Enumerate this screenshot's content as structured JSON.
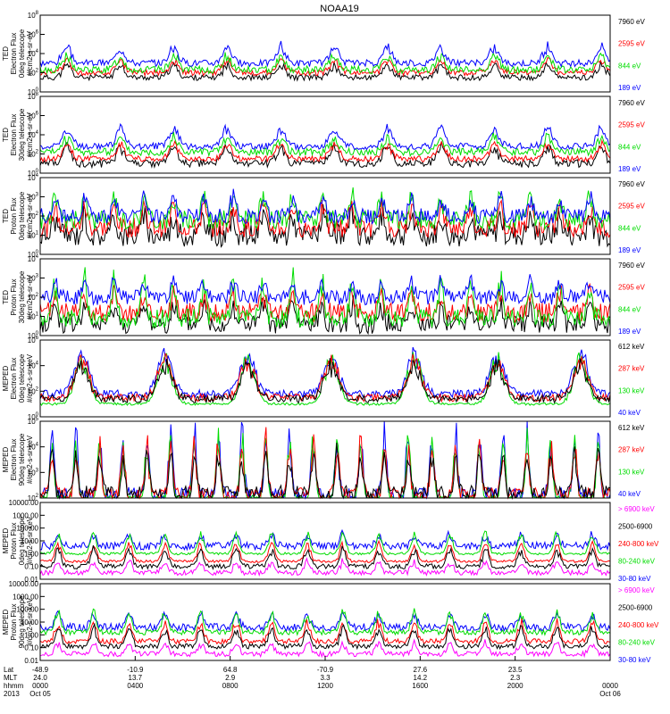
{
  "title": "NOAA19",
  "chart_data": [
    {
      "type": "line",
      "ylabel": [
        "TED",
        "Electron Flux",
        "0deg telescope",
        "#/cm2-s-sr-eV"
      ],
      "yticks": [
        "10^0",
        "10^2",
        "10^4",
        "10^6",
        "10^8"
      ],
      "ylim": [
        1,
        100000000
      ],
      "yscale": "log",
      "legend": [
        {
          "label": "7960 eV",
          "color": "#000000"
        },
        {
          "label": "2595 eV",
          "color": "#ff0000"
        },
        {
          "label": "844 eV",
          "color": "#00dd00"
        },
        {
          "label": "189 eV",
          "color": "#0000ff"
        }
      ],
      "series": [
        {
          "name": "7960 eV",
          "color": "#000000",
          "base": 1.5,
          "peak": 3,
          "peak_every": 9,
          "noise": 0.3,
          "seed": 11
        },
        {
          "name": "2595 eV",
          "color": "#ff0000",
          "base": 2.0,
          "peak": 3.5,
          "peak_every": 9,
          "noise": 0.3,
          "seed": 12
        },
        {
          "name": "844 eV",
          "color": "#00dd00",
          "base": 2.3,
          "peak": 4,
          "peak_every": 9,
          "noise": 0.4,
          "seed": 13
        },
        {
          "name": "189 eV",
          "color": "#0000ff",
          "base": 3.0,
          "peak": 5,
          "peak_every": 9,
          "noise": 0.35,
          "seed": 14
        }
      ]
    },
    {
      "type": "line",
      "ylabel": [
        "TED",
        "Electron Flux",
        "30deg telescope",
        "#/cm2-s-sr-eV"
      ],
      "yticks": [
        "10^0",
        "10^2",
        "10^4",
        "10^6",
        "10^8"
      ],
      "ylim": [
        1,
        100000000
      ],
      "yscale": "log",
      "legend": [
        {
          "label": "7960 eV",
          "color": "#000000"
        },
        {
          "label": "2595 eV",
          "color": "#ff0000"
        },
        {
          "label": "844 eV",
          "color": "#00dd00"
        },
        {
          "label": "189 eV",
          "color": "#0000ff"
        }
      ],
      "series": [
        {
          "name": "7960 eV",
          "color": "#000000",
          "base": 1.0,
          "peak": 3,
          "peak_every": 9,
          "noise": 0.4,
          "seed": 21
        },
        {
          "name": "2595 eV",
          "color": "#ff0000",
          "base": 1.5,
          "peak": 3.3,
          "peak_every": 9,
          "noise": 0.3,
          "seed": 22
        },
        {
          "name": "844 eV",
          "color": "#00dd00",
          "base": 2.2,
          "peak": 4,
          "peak_every": 9,
          "noise": 0.4,
          "seed": 23
        },
        {
          "name": "189 eV",
          "color": "#0000ff",
          "base": 2.8,
          "peak": 5,
          "peak_every": 9,
          "noise": 0.35,
          "seed": 24
        }
      ]
    },
    {
      "type": "line",
      "ylabel": [
        "TED",
        "Proton Flux",
        "0deg telescope",
        "#/cm2-s-sr-eV"
      ],
      "yticks": [
        "10^0",
        "10^1",
        "10^2",
        "10^3",
        "10^4"
      ],
      "ylim": [
        1,
        10000
      ],
      "yscale": "log",
      "legend": [
        {
          "label": "7960 eV",
          "color": "#000000"
        },
        {
          "label": "2595 eV",
          "color": "#ff0000"
        },
        {
          "label": "844 eV",
          "color": "#00dd00"
        },
        {
          "label": "189 eV",
          "color": "#0000ff"
        }
      ],
      "series": [
        {
          "name": "7960 eV",
          "color": "#000000",
          "base": 1.0,
          "peak": 2.2,
          "peak_every": 5,
          "noise": 0.6,
          "seed": 31
        },
        {
          "name": "2595 eV",
          "color": "#ff0000",
          "base": 1.4,
          "peak": 2.8,
          "peak_every": 5,
          "noise": 0.5,
          "seed": 32
        },
        {
          "name": "844 eV",
          "color": "#00dd00",
          "base": 1.8,
          "peak": 3.4,
          "peak_every": 5,
          "noise": 0.5,
          "seed": 33
        },
        {
          "name": "189 eV",
          "color": "#0000ff",
          "base": 2.0,
          "peak": 3.2,
          "peak_every": 5,
          "noise": 0.4,
          "seed": 34
        }
      ]
    },
    {
      "type": "line",
      "ylabel": [
        "TED",
        "Proton Flux",
        "30deg telescope",
        "#/cm2-s-sr-eV"
      ],
      "yticks": [
        "10^0",
        "10^1",
        "10^2",
        "10^3",
        "10^4"
      ],
      "ylim": [
        1,
        10000
      ],
      "yscale": "log",
      "legend": [
        {
          "label": "7960 eV",
          "color": "#000000"
        },
        {
          "label": "2595 eV",
          "color": "#ff0000"
        },
        {
          "label": "844 eV",
          "color": "#00dd00"
        },
        {
          "label": "189 eV",
          "color": "#0000ff"
        }
      ],
      "series": [
        {
          "name": "7960 eV",
          "color": "#000000",
          "base": 0.6,
          "peak": 1.8,
          "peak_every": 5,
          "noise": 0.5,
          "seed": 41
        },
        {
          "name": "2595 eV",
          "color": "#ff0000",
          "base": 1.2,
          "peak": 2.4,
          "peak_every": 5,
          "noise": 0.5,
          "seed": 42
        },
        {
          "name": "844 eV",
          "color": "#00dd00",
          "base": 0.9,
          "peak": 3.2,
          "peak_every": 5,
          "noise": 0.5,
          "seed": 43
        },
        {
          "name": "189 eV",
          "color": "#0000ff",
          "base": 2.0,
          "peak": 3.0,
          "peak_every": 5,
          "noise": 0.4,
          "seed": 44
        }
      ]
    },
    {
      "type": "line",
      "ylabel": [
        "MEPED",
        "Electron Flux",
        "0deg telescope",
        "#/cm2-s-sr-keV"
      ],
      "yticks": [
        "10^0",
        "10^2",
        "10^4",
        "10^6"
      ],
      "ylim": [
        1,
        1000000
      ],
      "yscale": "log",
      "legend": [
        {
          "label": "612 keV",
          "color": "#000000"
        },
        {
          "label": "287 keV",
          "color": "#ff0000"
        },
        {
          "label": "130 keV",
          "color": "#00dd00"
        },
        {
          "label": "40 keV",
          "color": "#0000ff"
        }
      ],
      "series": [
        {
          "name": "40 keV",
          "color": "#0000ff",
          "base": 1.8,
          "peak": 5.5,
          "peak_every": 14,
          "noise": 0.3,
          "seed": 51
        },
        {
          "name": "130 keV",
          "color": "#00dd00",
          "base": 1.0,
          "peak": 5.2,
          "peak_every": 14,
          "noise": 0.1,
          "seed": 52
        },
        {
          "name": "287 keV",
          "color": "#ff0000",
          "base": 1.5,
          "peak": 5.0,
          "peak_every": 14,
          "noise": 0.3,
          "seed": 53
        },
        {
          "name": "612 keV",
          "color": "#000000",
          "base": 1.4,
          "peak": 4.5,
          "peak_every": 14,
          "noise": 0.3,
          "seed": 54
        }
      ]
    },
    {
      "type": "line",
      "ylabel": [
        "MEPED",
        "Electron Flux",
        "90deg telescope",
        "#/cm2-s-sr-keV"
      ],
      "yticks": [
        "10^2",
        "10^3",
        "10^4",
        "10^5"
      ],
      "ylim": [
        100,
        100000
      ],
      "yscale": "log",
      "legend": [
        {
          "label": "612 keV",
          "color": "#000000"
        },
        {
          "label": "287 keV",
          "color": "#ff0000"
        },
        {
          "label": "130 keV",
          "color": "#00dd00"
        },
        {
          "label": "40 keV",
          "color": "#0000ff"
        }
      ],
      "series": [
        {
          "name": "40 keV",
          "color": "#0000ff",
          "base": 2.1,
          "peak": 4.9,
          "peak_every": 4,
          "noise": 0.3,
          "seed": 61
        },
        {
          "name": "130 keV",
          "color": "#00dd00",
          "base": 2.0,
          "peak": 4.7,
          "peak_every": 4,
          "noise": 0.1,
          "seed": 62
        },
        {
          "name": "287 keV",
          "color": "#ff0000",
          "base": 2.1,
          "peak": 4.5,
          "peak_every": 4,
          "noise": 0.3,
          "seed": 63
        },
        {
          "name": "612 keV",
          "color": "#000000",
          "base": 2.2,
          "peak": 4.0,
          "peak_every": 4,
          "noise": 0.3,
          "seed": 64
        }
      ]
    },
    {
      "type": "line",
      "ylabel": [
        "MEPED",
        "Proton Flux",
        "0deg telescope",
        "#/cm2-s-sr-keV"
      ],
      "yticks": [
        "0.01",
        "0.10",
        "1.00",
        "10.00",
        "100.00",
        "1000.00",
        "10000.00"
      ],
      "ylim": [
        0.01,
        10000
      ],
      "yscale": "log",
      "legend": [
        {
          "label": "> 6900 keV",
          "color": "#ff00ff"
        },
        {
          "label": "2500-6900",
          "color": "#000000"
        },
        {
          "label": "240-800 keV",
          "color": "#ff0000"
        },
        {
          "label": "80-240 keV",
          "color": "#00dd00"
        },
        {
          "label": "30-80 keV",
          "color": "#0000ff"
        }
      ],
      "series": [
        {
          "name": "30-80 keV",
          "color": "#0000ff",
          "base": 0.6,
          "peak": 1.6,
          "peak_every": 6,
          "noise": 0.3,
          "seed": 71
        },
        {
          "name": "80-240 keV",
          "color": "#00dd00",
          "base": 0.0,
          "peak": 1.8,
          "peak_every": 6,
          "noise": 0.1,
          "seed": 72
        },
        {
          "name": "240-800 keV",
          "color": "#ff0000",
          "base": -0.6,
          "peak": 1.0,
          "peak_every": 6,
          "noise": 0.1,
          "seed": 73
        },
        {
          "name": "2500-6900",
          "color": "#000000",
          "base": -1.0,
          "peak": 0.6,
          "peak_every": 6,
          "noise": 0.2,
          "seed": 74
        },
        {
          "name": "> 6900 keV",
          "color": "#ff00ff",
          "base": -1.5,
          "peak": -0.5,
          "peak_every": 6,
          "noise": 0.2,
          "seed": 75
        }
      ]
    },
    {
      "type": "line",
      "ylabel": [
        "MEPED",
        "Proton Flux",
        "90deg telescope",
        "#/cm2-s-sr-keV"
      ],
      "yticks": [
        "0.01",
        "0.10",
        "1.00",
        "10.00",
        "100.00",
        "1000.00",
        "10000.00"
      ],
      "ylim": [
        0.01,
        10000
      ],
      "yscale": "log",
      "legend": [
        {
          "label": "> 6900 keV",
          "color": "#ff00ff"
        },
        {
          "label": "2500-6900",
          "color": "#000000"
        },
        {
          "label": "240-800 keV",
          "color": "#ff0000"
        },
        {
          "label": "80-240 keV",
          "color": "#00dd00"
        },
        {
          "label": "30-80 keV",
          "color": "#0000ff"
        }
      ],
      "series": [
        {
          "name": "30-80 keV",
          "color": "#0000ff",
          "base": 0.6,
          "peak": 1.8,
          "peak_every": 6,
          "noise": 0.3,
          "seed": 81
        },
        {
          "name": "80-240 keV",
          "color": "#00dd00",
          "base": 0.2,
          "peak": 2.0,
          "peak_every": 6,
          "noise": 0.2,
          "seed": 82
        },
        {
          "name": "240-800 keV",
          "color": "#ff0000",
          "base": -0.5,
          "peak": 1.2,
          "peak_every": 6,
          "noise": 0.2,
          "seed": 83
        },
        {
          "name": "2500-6900",
          "color": "#000000",
          "base": -0.9,
          "peak": 0.8,
          "peak_every": 6,
          "noise": 0.2,
          "seed": 84
        },
        {
          "name": "> 6900 keV",
          "color": "#ff00ff",
          "base": -1.5,
          "peak": -0.5,
          "peak_every": 6,
          "noise": 0.2,
          "seed": 85
        }
      ]
    }
  ],
  "xaxis": {
    "row_labels": [
      "Lat",
      "MLT",
      "hhmm",
      "2013"
    ],
    "ticks": [
      {
        "lat": "-48.9",
        "mlt": "24.0",
        "hhmm": "0000",
        "date": "Oct 05"
      },
      {
        "lat": "-10.9",
        "mlt": "13.7",
        "hhmm": "0400",
        "date": ""
      },
      {
        "lat": "64.8",
        "mlt": "2.9",
        "hhmm": "0800",
        "date": ""
      },
      {
        "lat": "-70.9",
        "mlt": "3.3",
        "hhmm": "1200",
        "date": ""
      },
      {
        "lat": "27.6",
        "mlt": "14.2",
        "hhmm": "1600",
        "date": ""
      },
      {
        "lat": "23.5",
        "mlt": "2.3",
        "hhmm": "2000",
        "date": ""
      },
      {
        "lat": "",
        "mlt": "",
        "hhmm": "0000",
        "date": "Oct 06"
      }
    ]
  }
}
